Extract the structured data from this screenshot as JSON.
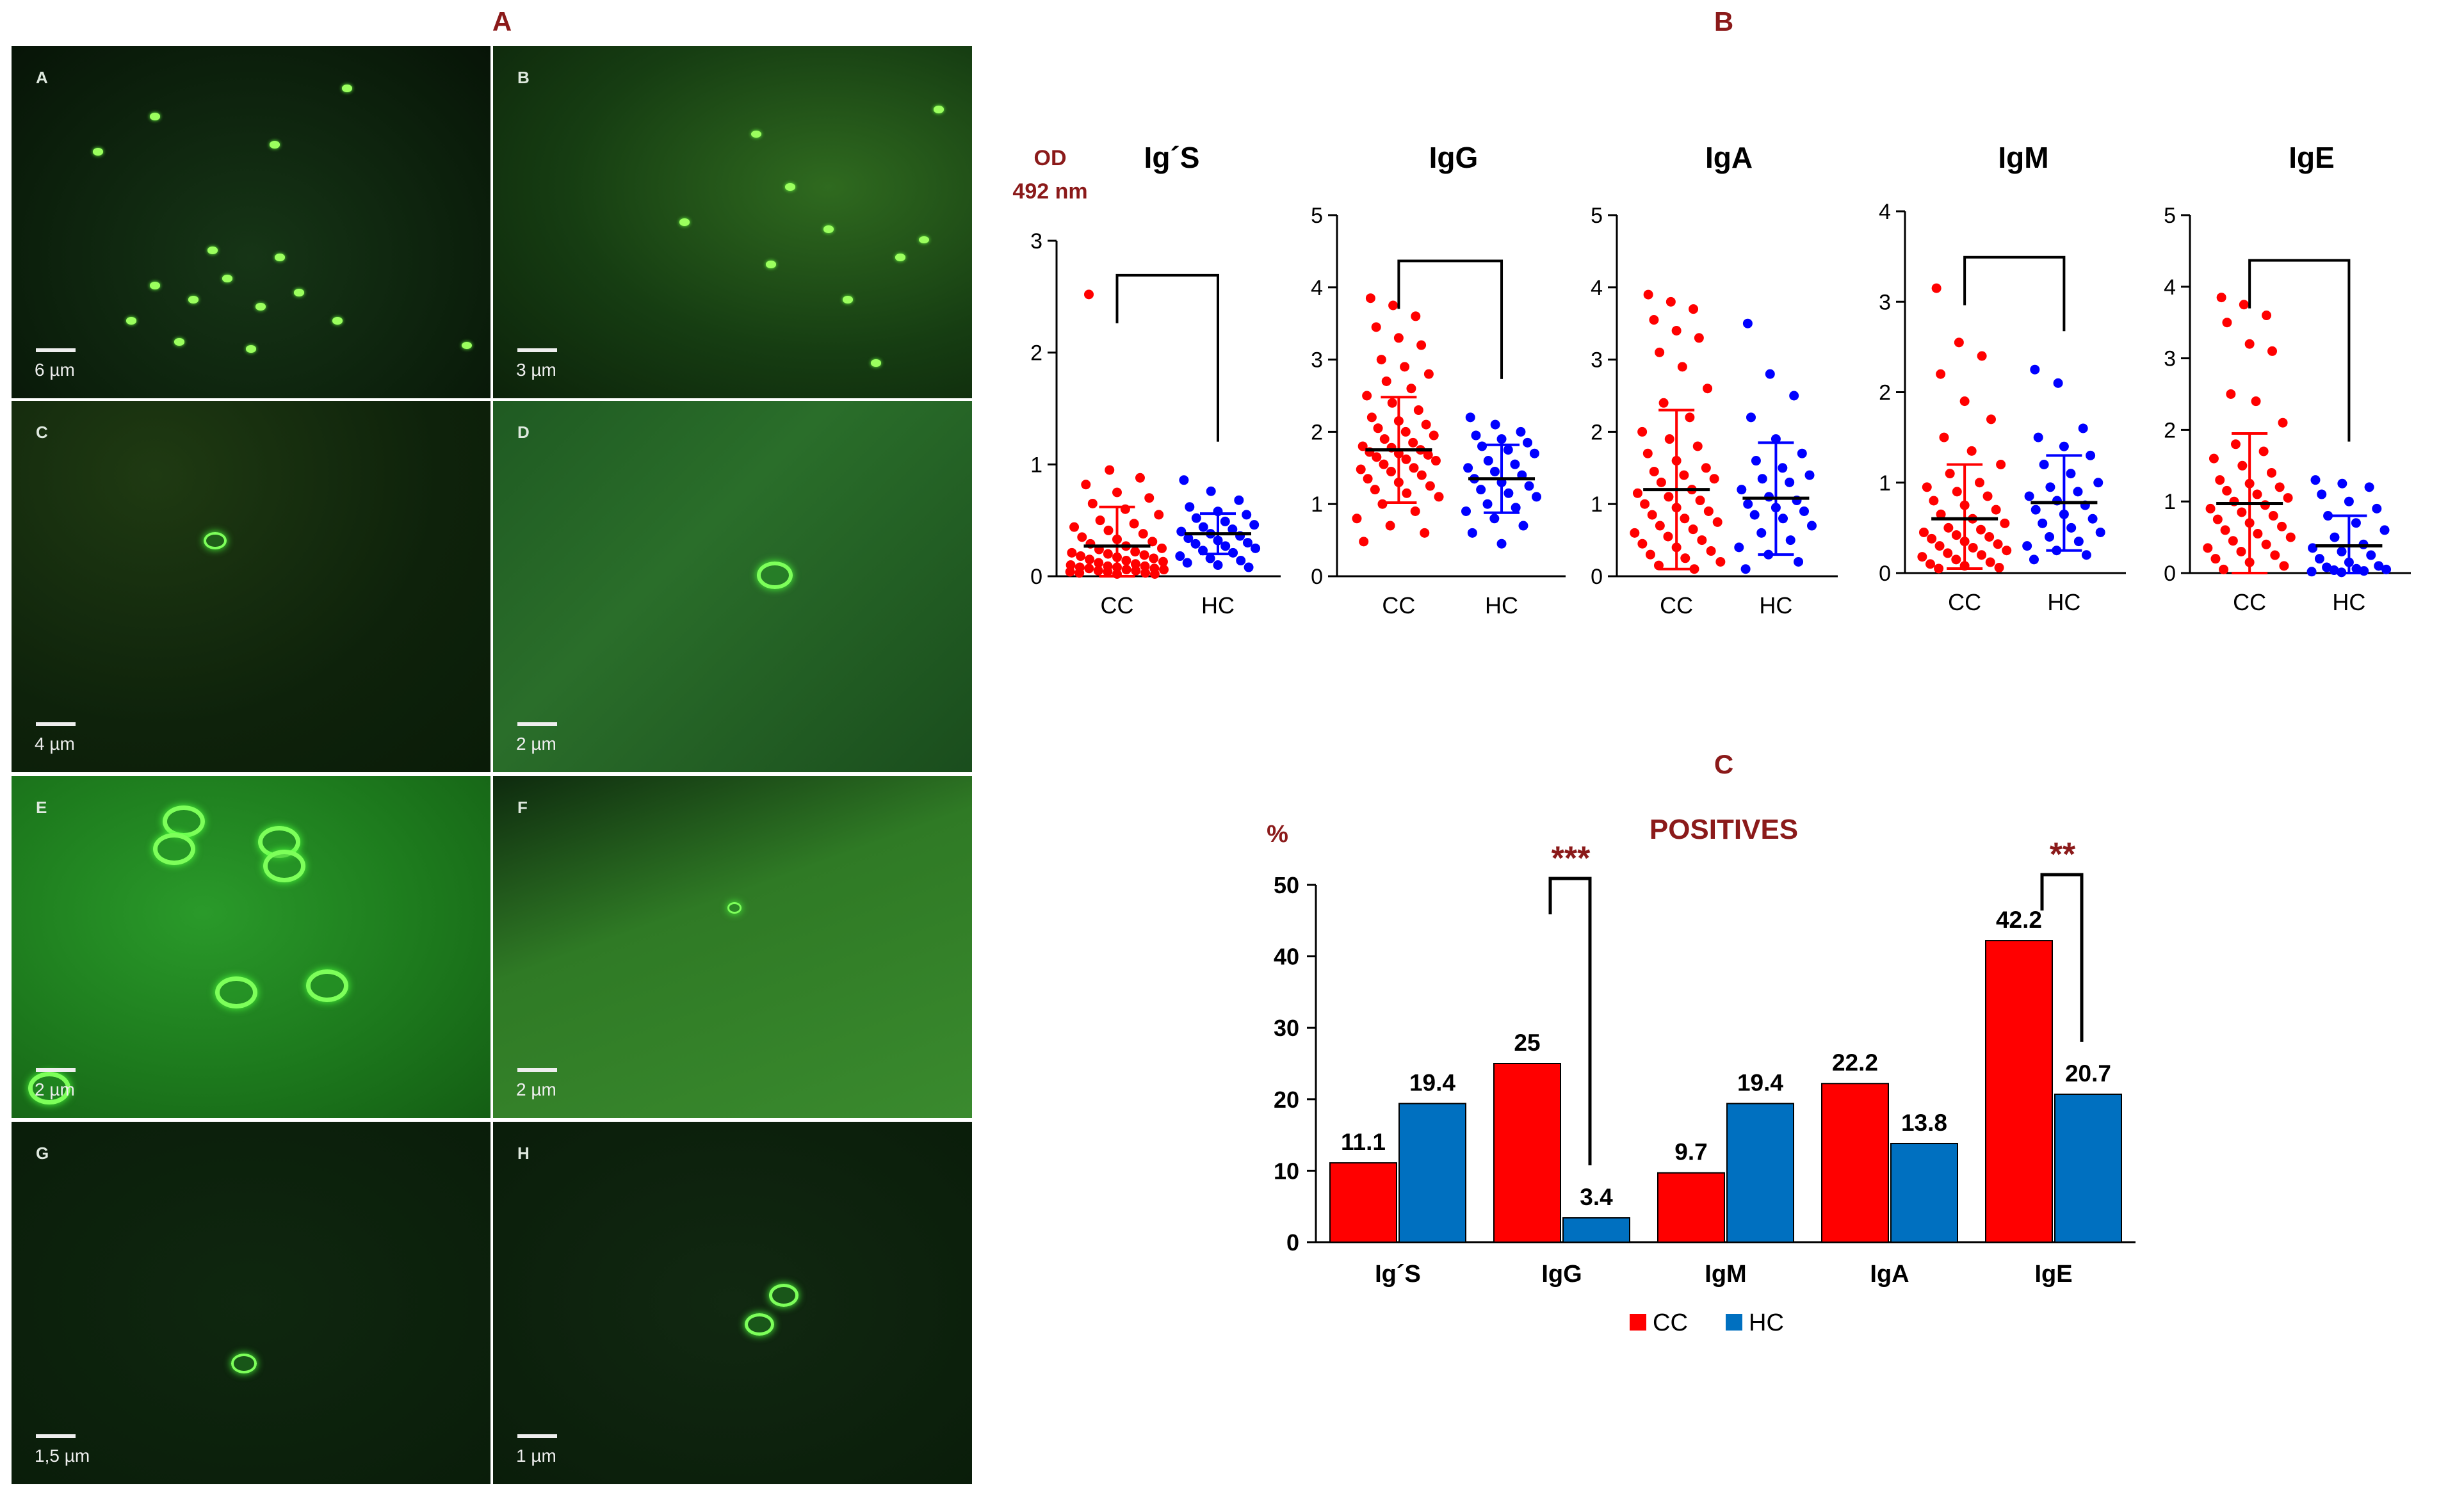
{
  "panel_labels": {
    "a": "A",
    "b": "B",
    "c": "C"
  },
  "micrographs": [
    {
      "label": "A",
      "scale": "6 µm"
    },
    {
      "label": "B",
      "scale": "3 µm"
    },
    {
      "label": "C",
      "scale": "4 µm"
    },
    {
      "label": "D",
      "scale": "2 µm"
    },
    {
      "label": "E",
      "scale": "2 µm"
    },
    {
      "label": "F",
      "scale": "2 µm"
    },
    {
      "label": "G",
      "scale": "1,5 µm"
    },
    {
      "label": "H",
      "scale": "1 µm"
    }
  ],
  "colors": {
    "cc": "#ff0000",
    "hc": "#0000ff",
    "bar_cc": "#ff0000",
    "bar_hc": "#0070c0",
    "accent": "#8b1a1a",
    "micro_bg": "#0a1f0a"
  },
  "chart_data": [
    {
      "type": "scatter",
      "title": "Ig´S",
      "ylabel": "OD 492 nm",
      "categories": [
        "CC",
        "HC"
      ],
      "ylim": [
        0,
        3
      ],
      "yticks": [
        0,
        1,
        2,
        3
      ],
      "bracket": true,
      "series": [
        {
          "name": "CC",
          "mean": 0.27,
          "sd": [
            0.0,
            0.62
          ],
          "values": [
            2.52,
            0.95,
            0.88,
            0.82,
            0.75,
            0.7,
            0.65,
            0.6,
            0.55,
            0.5,
            0.47,
            0.44,
            0.41,
            0.38,
            0.35,
            0.33,
            0.31,
            0.29,
            0.27,
            0.25,
            0.24,
            0.22,
            0.21,
            0.2,
            0.19,
            0.18,
            0.17,
            0.16,
            0.15,
            0.14,
            0.13,
            0.12,
            0.11,
            0.1,
            0.09,
            0.09,
            0.08,
            0.08,
            0.07,
            0.07,
            0.06,
            0.06,
            0.05,
            0.05,
            0.04,
            0.04,
            0.03,
            0.03,
            0.02,
            0.02
          ]
        },
        {
          "name": "HC",
          "mean": 0.38,
          "sd": [
            0.2,
            0.56
          ],
          "values": [
            0.86,
            0.76,
            0.68,
            0.62,
            0.58,
            0.55,
            0.52,
            0.49,
            0.46,
            0.44,
            0.42,
            0.4,
            0.38,
            0.36,
            0.34,
            0.32,
            0.3,
            0.29,
            0.27,
            0.25,
            0.23,
            0.21,
            0.18,
            0.16,
            0.14,
            0.12,
            0.1,
            0.08
          ]
        }
      ]
    },
    {
      "type": "scatter",
      "title": "IgG",
      "ylabel": "",
      "categories": [
        "CC",
        "HC"
      ],
      "ylim": [
        0,
        5
      ],
      "yticks": [
        0,
        1,
        2,
        3,
        4,
        5
      ],
      "bracket": true,
      "series": [
        {
          "name": "CC",
          "mean": 1.75,
          "sd": [
            1.02,
            2.48
          ],
          "values": [
            3.85,
            3.75,
            3.6,
            3.45,
            3.3,
            3.2,
            3.0,
            2.9,
            2.8,
            2.7,
            2.6,
            2.5,
            2.4,
            2.3,
            2.2,
            2.15,
            2.1,
            2.05,
            2.0,
            1.95,
            1.9,
            1.85,
            1.8,
            1.78,
            1.75,
            1.72,
            1.7,
            1.68,
            1.65,
            1.62,
            1.6,
            1.55,
            1.5,
            1.48,
            1.45,
            1.4,
            1.35,
            1.3,
            1.25,
            1.2,
            1.15,
            1.1,
            1.0,
            0.9,
            0.8,
            0.7,
            0.6,
            0.48
          ]
        },
        {
          "name": "HC",
          "mean": 1.35,
          "sd": [
            0.88,
            1.82
          ],
          "values": [
            2.2,
            2.1,
            2.0,
            1.95,
            1.9,
            1.85,
            1.8,
            1.75,
            1.7,
            1.6,
            1.55,
            1.5,
            1.45,
            1.4,
            1.35,
            1.3,
            1.25,
            1.2,
            1.15,
            1.1,
            1.0,
            0.95,
            0.9,
            0.8,
            0.7,
            0.6,
            0.45
          ]
        }
      ]
    },
    {
      "type": "scatter",
      "title": "IgA",
      "ylabel": "",
      "categories": [
        "CC",
        "HC"
      ],
      "ylim": [
        0,
        5
      ],
      "yticks": [
        0,
        1,
        2,
        3,
        4,
        5
      ],
      "bracket": false,
      "series": [
        {
          "name": "CC",
          "mean": 1.2,
          "sd": [
            0.1,
            2.3
          ],
          "values": [
            3.9,
            3.8,
            3.7,
            3.55,
            3.4,
            3.3,
            3.1,
            2.9,
            2.6,
            2.4,
            2.2,
            2.0,
            1.9,
            1.8,
            1.7,
            1.6,
            1.5,
            1.45,
            1.4,
            1.35,
            1.3,
            1.2,
            1.15,
            1.1,
            1.05,
            1.0,
            0.95,
            0.9,
            0.85,
            0.8,
            0.75,
            0.7,
            0.65,
            0.6,
            0.55,
            0.5,
            0.45,
            0.4,
            0.35,
            0.3,
            0.25,
            0.2,
            0.15,
            0.1
          ]
        },
        {
          "name": "HC",
          "mean": 1.08,
          "sd": [
            0.3,
            1.85
          ],
          "values": [
            3.5,
            2.8,
            2.5,
            2.2,
            1.9,
            1.7,
            1.6,
            1.5,
            1.4,
            1.35,
            1.3,
            1.2,
            1.1,
            1.05,
            1.0,
            0.95,
            0.9,
            0.85,
            0.8,
            0.7,
            0.6,
            0.5,
            0.4,
            0.3,
            0.2,
            0.1
          ]
        }
      ]
    },
    {
      "type": "scatter",
      "title": "IgM",
      "ylabel": "",
      "categories": [
        "CC",
        "HC"
      ],
      "ylim": [
        0,
        4
      ],
      "yticks": [
        0,
        1,
        2,
        3,
        4
      ],
      "bracket": true,
      "series": [
        {
          "name": "CC",
          "mean": 0.6,
          "sd": [
            0.05,
            1.2
          ],
          "values": [
            3.15,
            2.55,
            2.4,
            2.2,
            1.9,
            1.7,
            1.5,
            1.35,
            1.2,
            1.1,
            1.0,
            0.95,
            0.9,
            0.85,
            0.8,
            0.75,
            0.7,
            0.65,
            0.6,
            0.55,
            0.5,
            0.48,
            0.45,
            0.42,
            0.4,
            0.38,
            0.35,
            0.32,
            0.3,
            0.28,
            0.25,
            0.22,
            0.2,
            0.18,
            0.15,
            0.12,
            0.1,
            0.08,
            0.06,
            0.05
          ]
        },
        {
          "name": "HC",
          "mean": 0.78,
          "sd": [
            0.25,
            1.3
          ],
          "values": [
            2.25,
            2.1,
            1.6,
            1.5,
            1.4,
            1.3,
            1.2,
            1.1,
            1.0,
            0.95,
            0.9,
            0.85,
            0.8,
            0.75,
            0.7,
            0.65,
            0.6,
            0.55,
            0.5,
            0.45,
            0.4,
            0.35,
            0.3,
            0.25,
            0.2,
            0.15
          ]
        }
      ]
    },
    {
      "type": "scatter",
      "title": "IgE",
      "ylabel": "",
      "categories": [
        "CC",
        "HC"
      ],
      "ylim": [
        0,
        5
      ],
      "yticks": [
        0,
        1,
        2,
        3,
        4,
        5
      ],
      "bracket": true,
      "series": [
        {
          "name": "CC",
          "mean": 0.97,
          "sd": [
            0.0,
            1.95
          ],
          "values": [
            3.85,
            3.75,
            3.6,
            3.5,
            3.2,
            3.1,
            2.5,
            2.4,
            2.1,
            1.8,
            1.7,
            1.6,
            1.5,
            1.4,
            1.3,
            1.25,
            1.2,
            1.15,
            1.1,
            1.05,
            1.0,
            0.95,
            0.9,
            0.85,
            0.8,
            0.75,
            0.7,
            0.65,
            0.6,
            0.55,
            0.5,
            0.45,
            0.4,
            0.35,
            0.3,
            0.25,
            0.2,
            0.15,
            0.1,
            0.05
          ]
        },
        {
          "name": "HC",
          "mean": 0.38,
          "sd": [
            0.0,
            0.8
          ],
          "values": [
            1.3,
            1.25,
            1.2,
            1.1,
            1.0,
            0.9,
            0.8,
            0.7,
            0.6,
            0.5,
            0.4,
            0.35,
            0.3,
            0.25,
            0.2,
            0.15,
            0.1,
            0.08,
            0.06,
            0.05,
            0.04,
            0.03,
            0.02,
            0.01
          ]
        }
      ]
    },
    {
      "type": "bar",
      "title": "POSITIVES",
      "ylabel": "%",
      "categories": [
        "Ig´S",
        "IgG",
        "IgM",
        "IgA",
        "IgE"
      ],
      "ylim": [
        0,
        50
      ],
      "yticks": [
        0,
        10,
        20,
        30,
        40,
        50
      ],
      "series": [
        {
          "name": "CC",
          "values": [
            11.1,
            25,
            9.7,
            22.2,
            42.2
          ],
          "labels": [
            "11.1",
            "25",
            "9.7",
            "22.2",
            "42.2"
          ]
        },
        {
          "name": "HC",
          "values": [
            19.4,
            3.4,
            19.4,
            13.8,
            20.7
          ],
          "labels": [
            "19.4",
            "3.4",
            "19.4",
            "13.8",
            "20.7"
          ]
        }
      ],
      "significance": [
        {
          "category": "IgG",
          "label": "***"
        },
        {
          "category": "IgE",
          "label": "**"
        }
      ],
      "legend": [
        "CC",
        "HC"
      ],
      "legend_position": "bottom"
    }
  ]
}
